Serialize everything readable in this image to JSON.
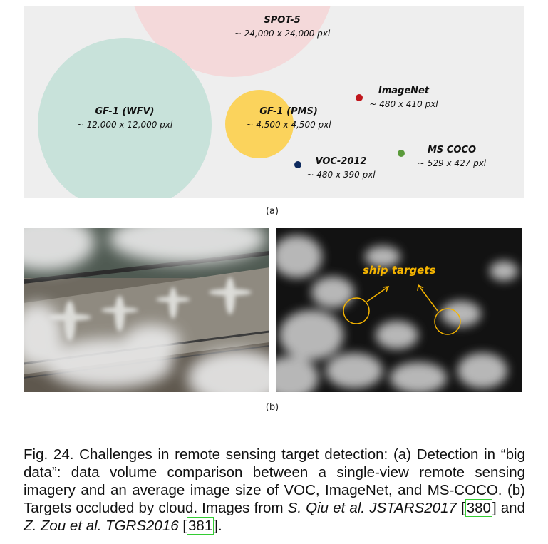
{
  "panel_a": {
    "circles": [
      {
        "id": "spot5",
        "name": "SPOT-5",
        "size": "~ 24,000 x 24,000 pxl",
        "color": "#f4d9da"
      },
      {
        "id": "gf1wfv",
        "name": "GF-1 (WFV)",
        "size": "~ 12,000 x 12,000 pxl",
        "color": "#c8e2da"
      },
      {
        "id": "gf1pms",
        "name": "GF-1 (PMS)",
        "size": "~ 4,500 x 4,500 pxl",
        "color": "#fbd35c"
      }
    ],
    "dots": [
      {
        "id": "imagenet",
        "name": "ImageNet",
        "size": "~ 480 x 410 pxl",
        "color": "#c0161c"
      },
      {
        "id": "voc2012",
        "name": "VOC-2012",
        "size": "~ 480 x 390 pxl",
        "color": "#0d2a5e"
      },
      {
        "id": "mscoco",
        "name": "MS COCO",
        "size": "~ 529 x 427 pxl",
        "color": "#5a9a3a"
      }
    ],
    "caption": "(a)"
  },
  "panel_b": {
    "annotation": "ship targets",
    "annotation_color": "#f5b400",
    "caption": "(b)"
  },
  "caption": {
    "part1": "Fig. 24. Challenges in remote sensing target detection: (a) Detection in “big data”: data volume comparison between a single-view remote sensing imagery and an average image size of VOC, ImageNet, and MS-COCO. (b) Targets occluded by cloud. Images from ",
    "cite1": "S. Qiu et al. JSTARS2017",
    "ref1": "380",
    "part2": " and ",
    "cite2": "Z. Zou et al. TGRS2016",
    "ref2": "381",
    "part3": "."
  }
}
